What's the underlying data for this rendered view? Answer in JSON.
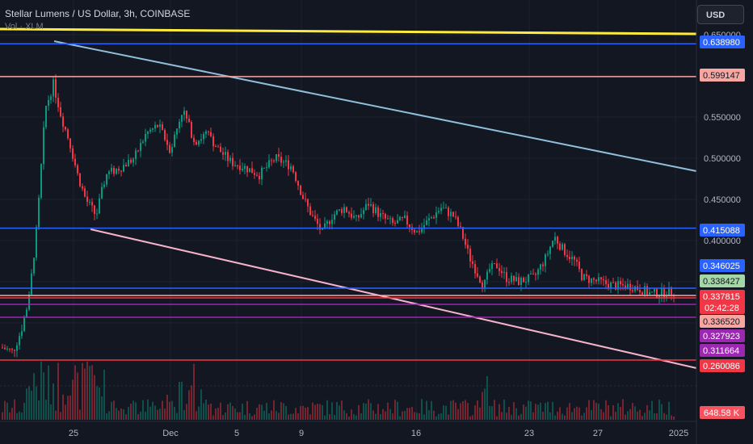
{
  "header": {
    "title": "Stellar Lumens / US Dollar, 3h, COINBASE",
    "volume_label": "Vol · XLM"
  },
  "currency_button": "USD",
  "price_axis": {
    "ticks": [
      "0.650000",
      "0.550000",
      "0.500000",
      "0.450000",
      "0.400000"
    ],
    "tick_values": [
      0.65,
      0.55,
      0.5,
      0.45,
      0.4
    ],
    "tags": [
      {
        "text": "0.638980",
        "value": 0.63898,
        "color": "#2962ff"
      },
      {
        "text": "0.599147",
        "value": 0.599147,
        "color": "#f7a6a1"
      },
      {
        "text": "0.415088",
        "value": 0.415088,
        "color": "#2962ff"
      },
      {
        "text": "0.346025",
        "value": 0.346025,
        "color": "#2962ff"
      },
      {
        "text": "0.338427",
        "value": 0.338427,
        "color": "#a5d6a7"
      },
      {
        "text": "0.337815",
        "value": 0.337815,
        "color": "#f23645",
        "countdown": "02:42:28"
      },
      {
        "text": "0.336520",
        "value": 0.33652,
        "color": "#f7a6a1"
      },
      {
        "text": "0.327923",
        "value": 0.327923,
        "color": "#9c27b0"
      },
      {
        "text": "0.311664",
        "value": 0.311664,
        "color": "#9c27b0"
      },
      {
        "text": "0.260086",
        "value": 0.260086,
        "color": "#f23645"
      }
    ],
    "volume_tag": "648.58 K"
  },
  "time_axis": [
    "25",
    "Dec",
    "5",
    "9",
    "16",
    "23",
    "27",
    "2025"
  ],
  "colors": {
    "up": "#089981",
    "down": "#f23645",
    "bg": "#131722",
    "grid": "#1e222d",
    "axis_text": "#b2b5be"
  }
}
